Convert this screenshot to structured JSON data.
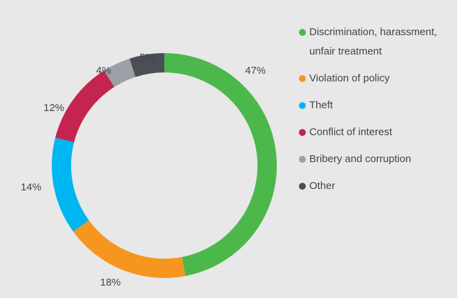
{
  "chart_data": {
    "type": "donut",
    "categories": [
      "Discrimination, harassment, unfair treatment",
      "Violation of policy",
      "Theft",
      "Conflict of interest",
      "Bribery and corruption",
      "Other"
    ],
    "values": [
      47,
      18,
      14,
      12,
      4,
      5
    ],
    "value_labels": [
      "47%",
      "18%",
      "14%",
      "12%",
      "4%",
      "5%"
    ],
    "colors": [
      "#4cb84c",
      "#f7961e",
      "#00b6f0",
      "#c4244f",
      "#9aa0a6",
      "#4a4f55"
    ],
    "legend": "right"
  }
}
